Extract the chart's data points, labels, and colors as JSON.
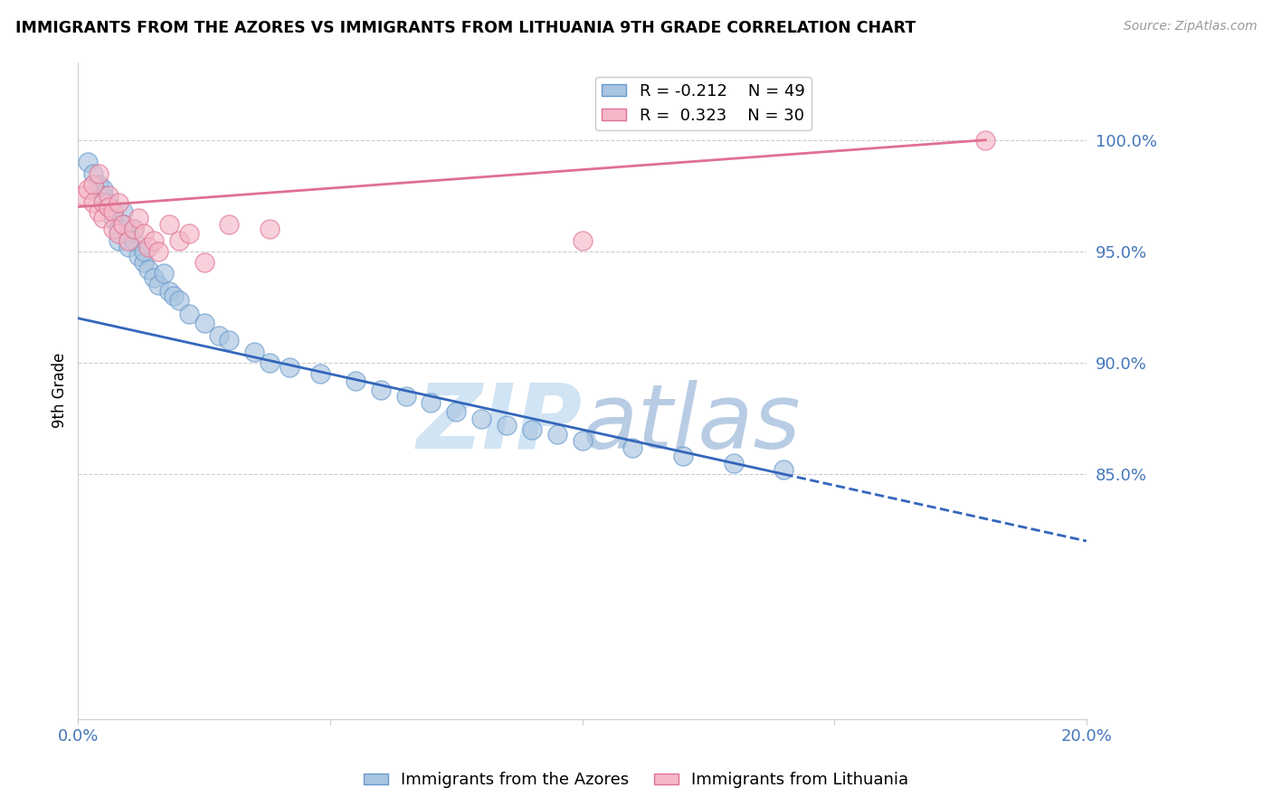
{
  "title": "IMMIGRANTS FROM THE AZORES VS IMMIGRANTS FROM LITHUANIA 9TH GRADE CORRELATION CHART",
  "source": "Source: ZipAtlas.com",
  "ylabel": "9th Grade",
  "ytick_labels": [
    "100.0%",
    "95.0%",
    "90.0%",
    "85.0%"
  ],
  "ytick_values": [
    1.0,
    0.95,
    0.9,
    0.85
  ],
  "xlim": [
    0.0,
    0.2
  ],
  "ylim": [
    0.74,
    1.035
  ],
  "legend_r_azores": "R = -0.212",
  "legend_n_azores": "N = 49",
  "legend_r_lith": "R =  0.323",
  "legend_n_lith": "N = 30",
  "azores_color": "#a8c4e0",
  "azores_edge": "#6699cc",
  "lith_color": "#f4b8c8",
  "lith_edge": "#e07090",
  "trendline_azores_color": "#3366bb",
  "trendline_lith_color": "#e07090",
  "watermark_color": "#d0e4f4",
  "azores_x": [
    0.002,
    0.003,
    0.004,
    0.005,
    0.005,
    0.006,
    0.006,
    0.007,
    0.007,
    0.008,
    0.008,
    0.009,
    0.009,
    0.01,
    0.01,
    0.011,
    0.011,
    0.012,
    0.013,
    0.013,
    0.014,
    0.015,
    0.016,
    0.017,
    0.018,
    0.019,
    0.02,
    0.022,
    0.025,
    0.028,
    0.03,
    0.035,
    0.038,
    0.042,
    0.048,
    0.055,
    0.06,
    0.065,
    0.07,
    0.075,
    0.08,
    0.085,
    0.09,
    0.095,
    0.1,
    0.11,
    0.12,
    0.13,
    0.14
  ],
  "azores_y": [
    0.99,
    0.985,
    0.98,
    0.978,
    0.975,
    0.972,
    0.97,
    0.968,
    0.965,
    0.96,
    0.955,
    0.968,
    0.962,
    0.958,
    0.952,
    0.96,
    0.955,
    0.948,
    0.945,
    0.95,
    0.942,
    0.938,
    0.935,
    0.94,
    0.932,
    0.93,
    0.928,
    0.922,
    0.918,
    0.912,
    0.91,
    0.905,
    0.9,
    0.898,
    0.895,
    0.892,
    0.888,
    0.885,
    0.882,
    0.878,
    0.875,
    0.872,
    0.87,
    0.868,
    0.865,
    0.862,
    0.858,
    0.855,
    0.852
  ],
  "lith_x": [
    0.001,
    0.002,
    0.003,
    0.003,
    0.004,
    0.004,
    0.005,
    0.005,
    0.006,
    0.006,
    0.007,
    0.007,
    0.008,
    0.008,
    0.009,
    0.01,
    0.011,
    0.012,
    0.013,
    0.014,
    0.015,
    0.016,
    0.018,
    0.02,
    0.022,
    0.025,
    0.03,
    0.038,
    0.1,
    0.18
  ],
  "lith_y": [
    0.975,
    0.978,
    0.98,
    0.972,
    0.985,
    0.968,
    0.972,
    0.965,
    0.975,
    0.97,
    0.968,
    0.96,
    0.972,
    0.958,
    0.962,
    0.955,
    0.96,
    0.965,
    0.958,
    0.952,
    0.955,
    0.95,
    0.962,
    0.955,
    0.958,
    0.945,
    0.962,
    0.96,
    0.955,
    1.0
  ],
  "az_trend_x0": 0.0,
  "az_trend_y0": 0.92,
  "az_trend_x1": 0.14,
  "az_trend_y1": 0.85,
  "az_trend_dash_x1": 0.2,
  "az_trend_dash_y1": 0.82,
  "lith_trend_x0": 0.0,
  "lith_trend_y0": 0.97,
  "lith_trend_x1": 0.18,
  "lith_trend_y1": 1.0
}
